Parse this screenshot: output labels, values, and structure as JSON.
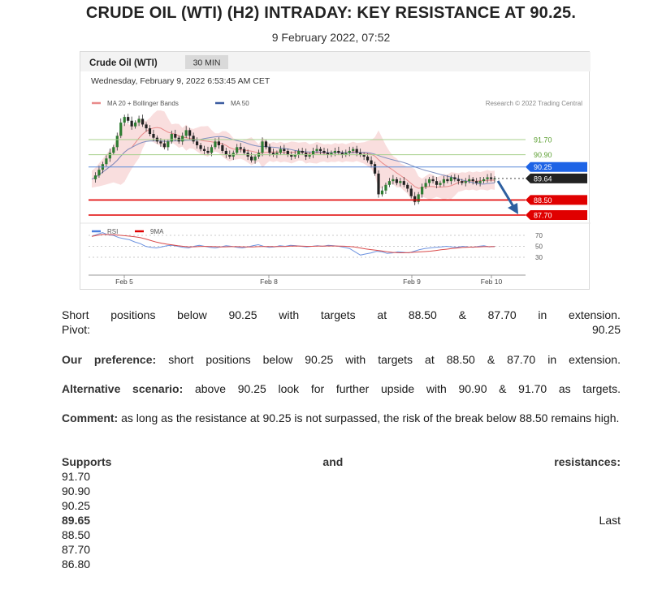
{
  "header": {
    "title": "CRUDE OIL (WTI) (H2) INTRADAY: KEY RESISTANCE AT 90.25.",
    "date": "9 February 2022, 07:52"
  },
  "chart": {
    "instrument": "Crude Oil (WTI)",
    "timeframe": "30 MIN",
    "timestamp": "Wednesday, February 9, 2022 6:53:45 AM CET",
    "legend_ma20": "MA 20 + Bollinger Bands",
    "legend_ma50": "MA 50",
    "credit": "Research © 2022 Trading Central",
    "rsi_label": "RSI",
    "ma9_label": "9MA",
    "colors": {
      "ma20": "#e88a8a",
      "ma50": "#3a5ba0",
      "resistance": "#1e64e6",
      "support": "#e00000",
      "target_green": "#7db84a",
      "last": "#222222"
    }
  },
  "chart_data": {
    "type": "candlestick",
    "x_ticks": [
      "Feb 5",
      "Feb 8",
      "Feb 9",
      "Feb 10"
    ],
    "levels": [
      {
        "value": "91.70",
        "kind": "resistance-green"
      },
      {
        "value": "90.90",
        "kind": "resistance-green"
      },
      {
        "value": "90.25",
        "kind": "key-resistance"
      },
      {
        "value": "89.64",
        "kind": "last-price"
      },
      {
        "value": "88.50",
        "kind": "support"
      },
      {
        "value": "87.70",
        "kind": "support"
      }
    ],
    "rsi_levels": [
      "70",
      "50",
      "30"
    ],
    "price_path": [
      89.6,
      89.8,
      90.1,
      90.4,
      90.7,
      91.0,
      91.3,
      91.9,
      92.6,
      92.9,
      92.7,
      92.4,
      92.6,
      92.8,
      92.5,
      92.3,
      92.0,
      91.8,
      91.6,
      91.5,
      91.3,
      91.6,
      92.0,
      91.8,
      91.6,
      91.9,
      92.2,
      91.9,
      91.6,
      91.4,
      91.2,
      91.1,
      91.0,
      91.3,
      91.6,
      91.4,
      91.1,
      90.9,
      90.8,
      91.0,
      91.3,
      91.2,
      91.0,
      90.8,
      90.6,
      90.8,
      91.0,
      91.6,
      91.3,
      91.0,
      90.9,
      91.0,
      91.2,
      91.1,
      90.9,
      90.8,
      90.9,
      91.1,
      91.0,
      90.8,
      90.9,
      91.1,
      91.2,
      91.1,
      91.0,
      90.9,
      91.0,
      91.1,
      91.0,
      90.9,
      91.0,
      91.1,
      91.2,
      91.0,
      90.9,
      90.8,
      90.6,
      90.4,
      89.9,
      88.8,
      89.0,
      89.3,
      89.5,
      89.6,
      89.4,
      89.5,
      89.3,
      89.1,
      88.7,
      88.4,
      88.8,
      89.2,
      89.4,
      89.6,
      89.5,
      89.3,
      89.4,
      89.6,
      89.5,
      89.7,
      89.6,
      89.5,
      89.4,
      89.5,
      89.6,
      89.5,
      89.4,
      89.5,
      89.6,
      89.7,
      89.6,
      89.64
    ],
    "rsi_path": [
      68,
      72,
      75,
      71,
      70,
      66,
      64,
      62,
      58,
      55,
      50,
      48,
      47,
      49,
      51,
      52,
      50,
      48,
      47,
      50,
      52,
      50,
      48,
      47,
      49,
      51,
      50,
      48,
      47,
      49,
      51,
      53,
      50,
      48,
      49,
      51,
      50,
      52,
      51,
      50,
      49,
      50,
      51,
      50,
      52,
      51,
      50,
      48,
      46,
      40,
      34,
      36,
      38,
      41,
      40,
      37,
      38,
      40,
      39,
      38,
      41,
      44,
      46,
      47,
      48,
      49,
      50,
      49,
      48,
      50,
      49,
      48,
      50,
      51,
      49,
      50
    ]
  },
  "body": {
    "p1_words": [
      "Short",
      "positions",
      "below",
      "90.25",
      "with",
      "targets",
      "at",
      "88.50",
      "&",
      "87.70",
      "in",
      "extension."
    ],
    "pivot_label": "Pivot:",
    "pivot_value": "90.25",
    "pref_label": "Our preference:",
    "pref_text": "short positions below 90.25 with targets at 88.50 & 87.70 in extension.",
    "alt_label": "Alternative scenario:",
    "alt_text": "above 90.25 look for further upside with 90.90 & 91.70 as targets.",
    "comment_label": "Comment:",
    "comment_text": "as long as the resistance at 90.25 is not surpassed, the risk of the break below 88.50 remains high.",
    "sr_words": [
      "Supports",
      "and",
      "resistances:"
    ],
    "levels": [
      "91.70",
      "90.90",
      "90.25",
      "89.65",
      "88.50",
      "87.70",
      "86.80"
    ],
    "last_label": "Last"
  }
}
